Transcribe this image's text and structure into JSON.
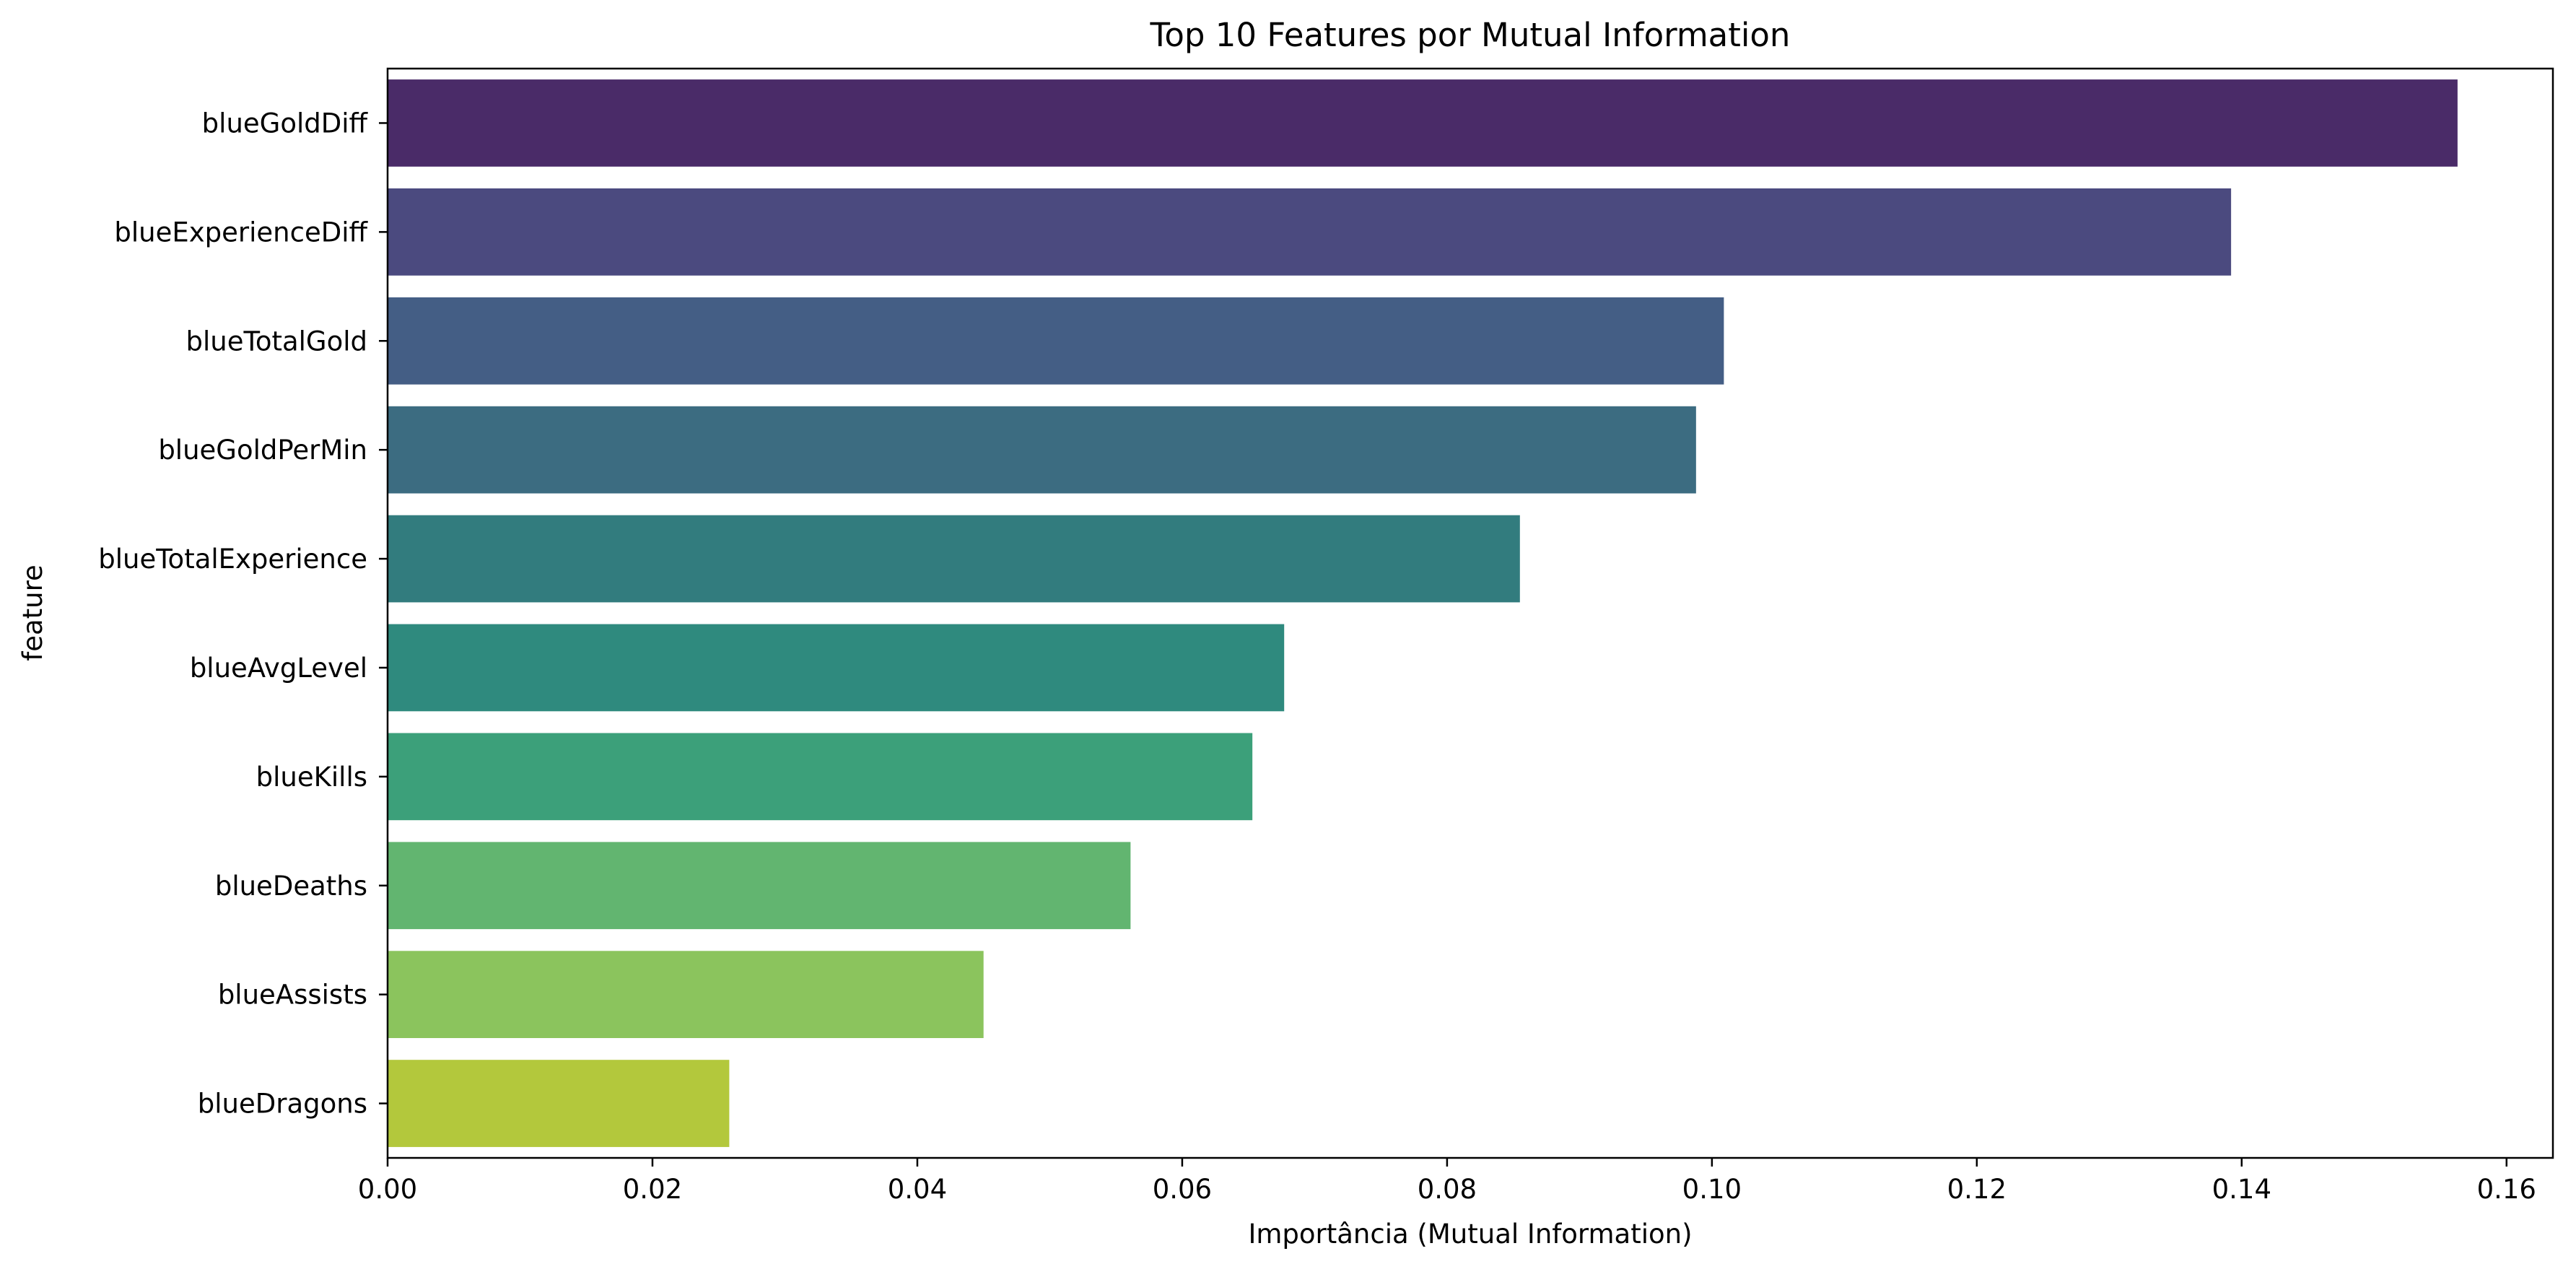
{
  "chart_data": {
    "type": "bar",
    "orientation": "horizontal",
    "title": "Top 10 Features por Mutual Information",
    "xlabel": "Importância (Mutual Information)",
    "ylabel": "feature",
    "xlim": [
      0,
      0.1635
    ],
    "xticks": [
      "0.00",
      "0.02",
      "0.04",
      "0.06",
      "0.08",
      "0.10",
      "0.12",
      "0.14",
      "0.16"
    ],
    "grid": false,
    "legend": "none",
    "categories": [
      "blueGoldDiff",
      "blueExperienceDiff",
      "blueTotalGold",
      "blueGoldPerMin",
      "blueTotalExperience",
      "blueAvgLevel",
      "blueKills",
      "blueDeaths",
      "blueAssists",
      "blueDragons"
    ],
    "values": [
      0.1563,
      0.1392,
      0.1009,
      0.0988,
      0.0855,
      0.0677,
      0.0653,
      0.0561,
      0.045,
      0.0258
    ],
    "colors": [
      "#4a2b68",
      "#4b4a7f",
      "#445e85",
      "#3c6c81",
      "#327c7e",
      "#2f8a7e",
      "#3ca07a",
      "#62b570",
      "#8bc45d",
      "#b3c83c"
    ]
  }
}
